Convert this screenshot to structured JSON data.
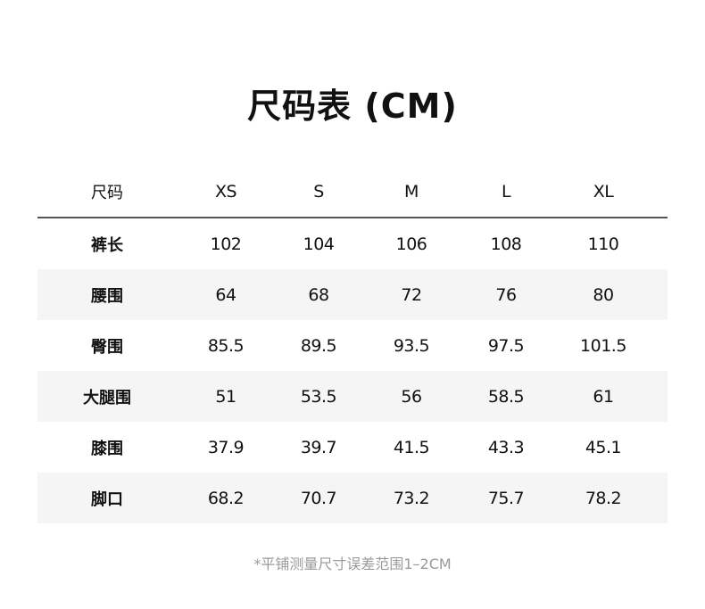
{
  "title": "尺码表 (CM)",
  "table": {
    "header": [
      "尺码",
      "XS",
      "S",
      "M",
      "L",
      "XL"
    ],
    "rows": [
      [
        "裤长",
        "102",
        "104",
        "106",
        "108",
        "110"
      ],
      [
        "腰围",
        "64",
        "68",
        "72",
        "76",
        "80"
      ],
      [
        "臀围",
        "85.5",
        "89.5",
        "93.5",
        "97.5",
        "101.5"
      ],
      [
        "大腿围",
        "51",
        "53.5",
        "56",
        "58.5",
        "61"
      ],
      [
        "膝围",
        "37.9",
        "39.7",
        "41.5",
        "43.3",
        "45.1"
      ],
      [
        "脚口",
        "68.2",
        "70.7",
        "73.2",
        "75.7",
        "78.2"
      ]
    ],
    "stripe_color": "#f5f5f5"
  },
  "note": "*平铺测量尺寸误差范围1–2CM"
}
